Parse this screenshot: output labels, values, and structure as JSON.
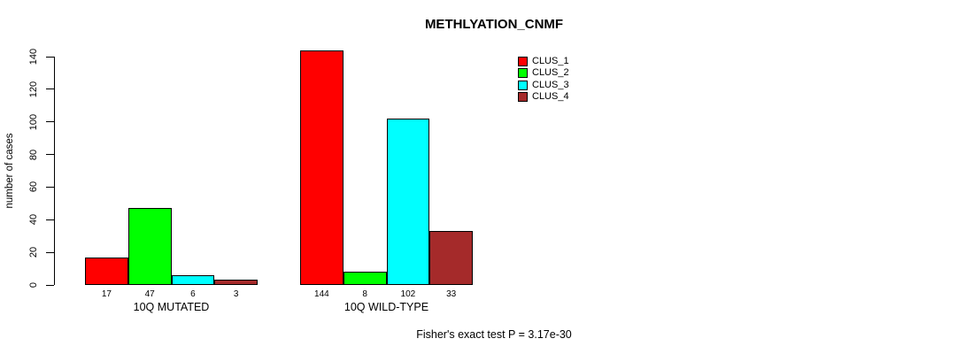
{
  "chart_data": {
    "type": "bar",
    "title": "METHLYATION_CNMF",
    "xlabel": "",
    "ylabel": "number of cases",
    "ylim": [
      0,
      140
    ],
    "yticks": [
      0,
      20,
      40,
      60,
      80,
      100,
      120,
      140
    ],
    "grid": false,
    "legend_position": "top-right",
    "bar_value_labels_shown": true,
    "categories": [
      "10Q MUTATED",
      "10Q WILD-TYPE"
    ],
    "series": [
      {
        "name": "CLUS_1",
        "color": "#ff0000",
        "values": [
          17,
          144
        ]
      },
      {
        "name": "CLUS_2",
        "color": "#00ff00",
        "values": [
          47,
          8
        ]
      },
      {
        "name": "CLUS_3",
        "color": "#00ffff",
        "values": [
          6,
          102
        ]
      },
      {
        "name": "CLUS_4",
        "color": "#a52a2a",
        "values": [
          3,
          33
        ]
      }
    ]
  },
  "footer": {
    "text": "Fisher's exact test P = 3.17e-30"
  }
}
